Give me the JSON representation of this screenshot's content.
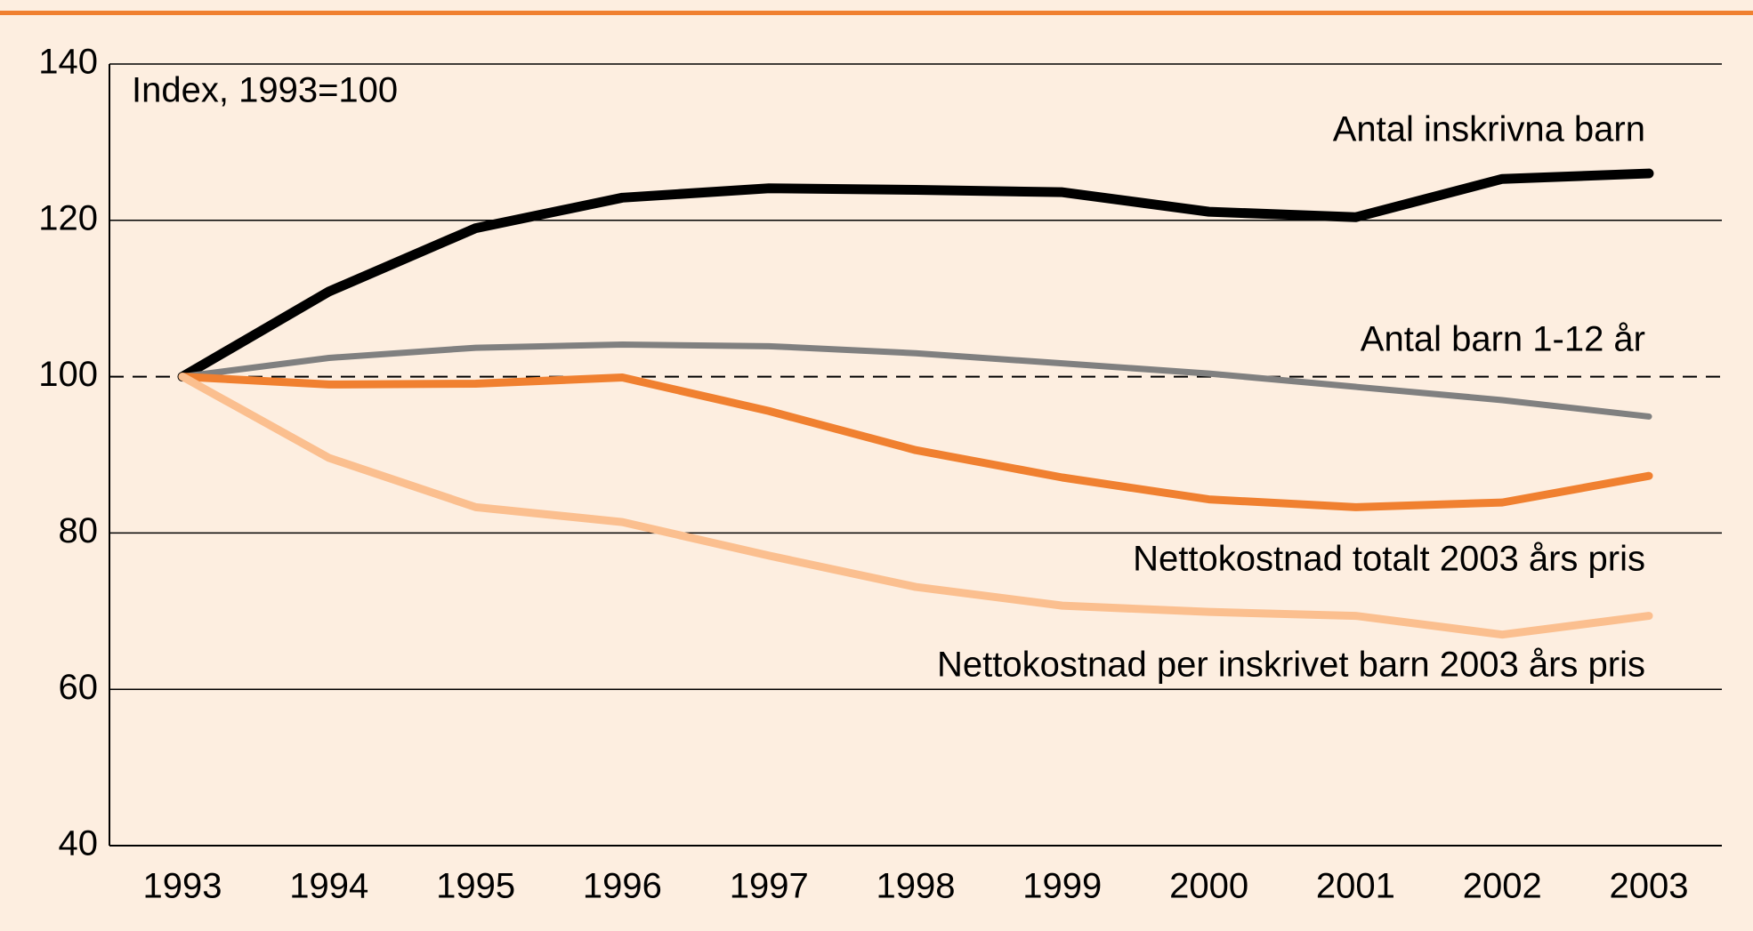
{
  "chart_data": {
    "type": "line",
    "y_label": "Index, 1993=100",
    "categories": [
      "1993",
      "1994",
      "1995",
      "1996",
      "1997",
      "1998",
      "1999",
      "2000",
      "2001",
      "2002",
      "2003"
    ],
    "series": [
      {
        "name": "Antal inskrivna barn",
        "color": "#000000",
        "values": [
          100,
          110.9,
          119,
          122.9,
          124.1,
          123.9,
          123.6,
          121.1,
          120.4,
          125.3,
          126
        ]
      },
      {
        "name": "Antal barn 1-12 år",
        "color": "#808080",
        "values": [
          100,
          102.4,
          103.7,
          104.1,
          103.9,
          103,
          101.7,
          100.4,
          98.7,
          97,
          94.9
        ]
      },
      {
        "name": "Nettokostnad totalt 2003 års pris",
        "color": "#f08030",
        "values": [
          100,
          99,
          99.1,
          99.9,
          95.6,
          90.6,
          87.1,
          84.3,
          83.3,
          83.9,
          87.3
        ]
      },
      {
        "name": "Nettokostnad per inskrivet barn 2003 års pris",
        "color": "#fbbf8f",
        "values": [
          100,
          89.6,
          83.3,
          81.4,
          77.1,
          73.1,
          70.7,
          69.9,
          69.4,
          67,
          69.4
        ]
      }
    ],
    "ylim": [
      40,
      140
    ],
    "yticks": [
      40,
      60,
      80,
      100,
      120,
      140
    ],
    "grid": true,
    "reference_line": 100
  }
}
